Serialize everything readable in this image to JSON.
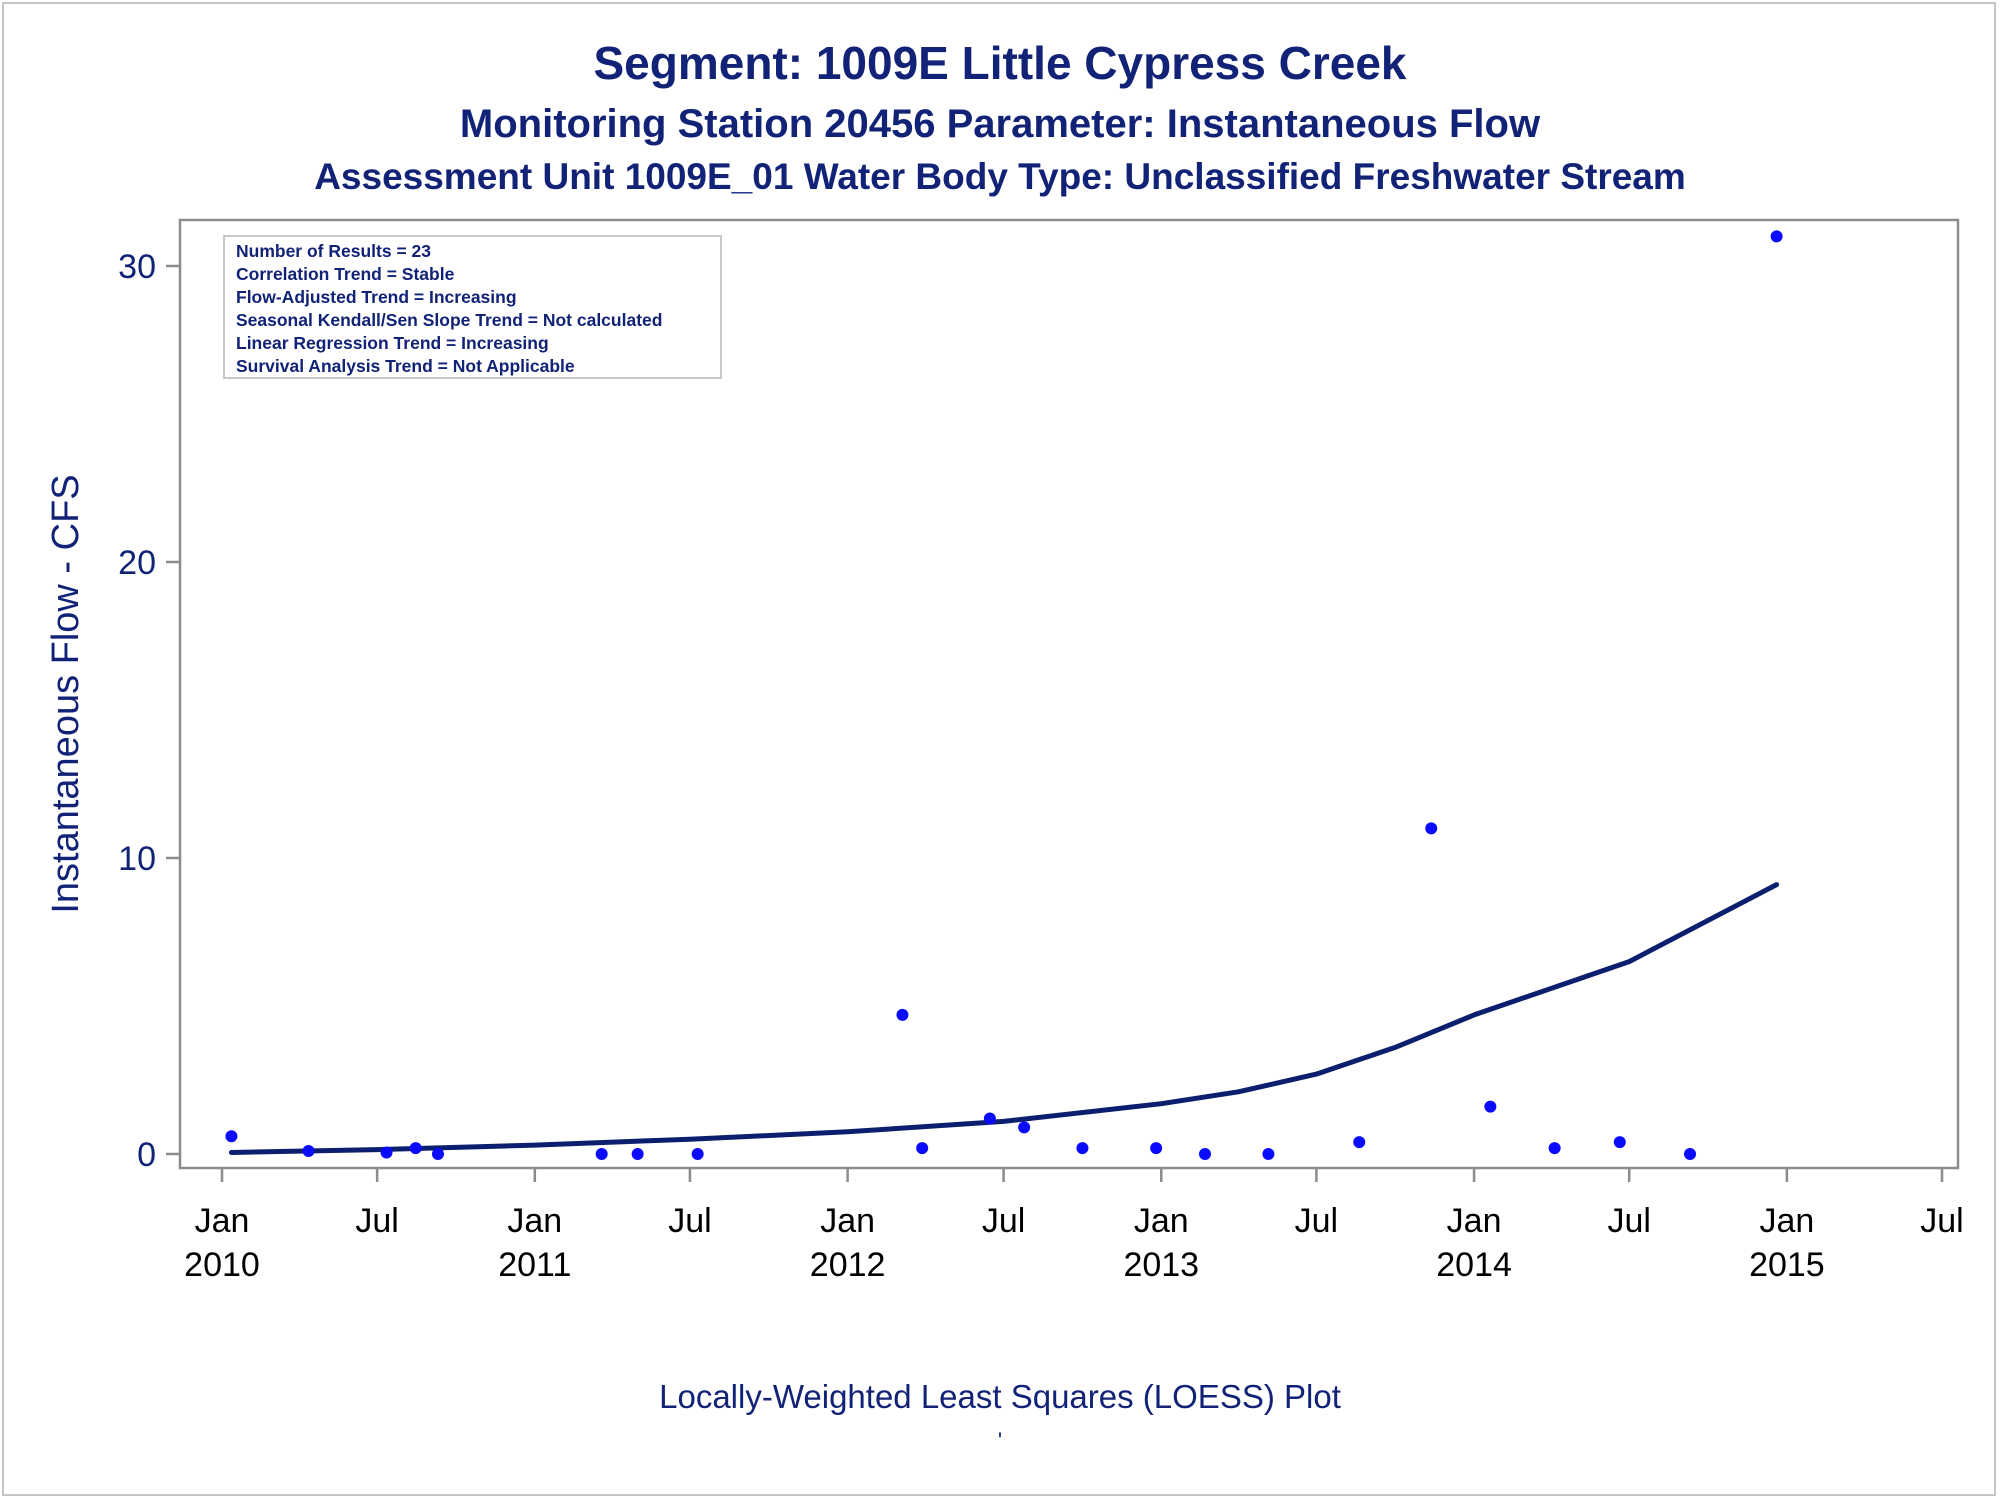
{
  "chart_data": {
    "type": "scatter",
    "title": "Segment: 1009E  Little Cypress Creek",
    "subtitle1": "Monitoring Station 20456 Parameter: Instantaneous Flow",
    "subtitle2": "Assessment Unit 1009E_01   Water Body Type: Unclassified Freshwater Stream",
    "ylabel": "Instantaneous Flow - CFS",
    "xlabel": "",
    "footnote": "Locally-Weighted Least Squares (LOESS) Plot",
    "footnote_mark": "'",
    "x_range": [
      "2010-01-01",
      "2015-07-01"
    ],
    "ylim": [
      0,
      31
    ],
    "y_ticks": [
      0,
      10,
      20,
      30
    ],
    "x_ticks": [
      {
        "date": "2010-01-01",
        "label1": "Jan",
        "label2": "2010"
      },
      {
        "date": "2010-07-01",
        "label1": "Jul",
        "label2": ""
      },
      {
        "date": "2011-01-01",
        "label1": "Jan",
        "label2": "2011"
      },
      {
        "date": "2011-07-01",
        "label1": "Jul",
        "label2": ""
      },
      {
        "date": "2012-01-01",
        "label1": "Jan",
        "label2": "2012"
      },
      {
        "date": "2012-07-01",
        "label1": "Jul",
        "label2": ""
      },
      {
        "date": "2013-01-01",
        "label1": "Jan",
        "label2": "2013"
      },
      {
        "date": "2013-07-01",
        "label1": "Jul",
        "label2": ""
      },
      {
        "date": "2014-01-01",
        "label1": "Jan",
        "label2": "2014"
      },
      {
        "date": "2014-07-01",
        "label1": "Jul",
        "label2": ""
      },
      {
        "date": "2015-01-01",
        "label1": "Jan",
        "label2": "2015"
      },
      {
        "date": "2015-07-01",
        "label1": "Jul",
        "label2": ""
      }
    ],
    "legend": {
      "placement": "top-left",
      "lines": [
        "Number of Results = 23",
        "Correlation Trend = Stable",
        "Flow-Adjusted Trend = Increasing",
        "Seasonal Kendall/Sen Slope Trend = Not calculated",
        "Linear Regression Trend = Increasing",
        "Survival Analysis Trend = Not Applicable"
      ]
    },
    "points": [
      {
        "x": "2010-01-12",
        "y": 0.6
      },
      {
        "x": "2010-04-12",
        "y": 0.1
      },
      {
        "x": "2010-07-12",
        "y": 0.05
      },
      {
        "x": "2010-08-15",
        "y": 0.2
      },
      {
        "x": "2010-09-10",
        "y": 0.0
      },
      {
        "x": "2011-03-20",
        "y": 0.0
      },
      {
        "x": "2011-05-01",
        "y": 0.0
      },
      {
        "x": "2011-07-10",
        "y": 0.0
      },
      {
        "x": "2012-03-05",
        "y": 4.7
      },
      {
        "x": "2012-03-28",
        "y": 0.2
      },
      {
        "x": "2012-06-15",
        "y": 1.2
      },
      {
        "x": "2012-07-25",
        "y": 0.9
      },
      {
        "x": "2012-10-01",
        "y": 0.2
      },
      {
        "x": "2012-12-26",
        "y": 0.2
      },
      {
        "x": "2013-02-21",
        "y": 0.0
      },
      {
        "x": "2013-05-06",
        "y": 0.0
      },
      {
        "x": "2013-08-20",
        "y": 0.4
      },
      {
        "x": "2013-11-12",
        "y": 11.0
      },
      {
        "x": "2014-01-20",
        "y": 1.6
      },
      {
        "x": "2014-04-05",
        "y": 0.2
      },
      {
        "x": "2014-06-20",
        "y": 0.4
      },
      {
        "x": "2014-09-10",
        "y": 0.0
      },
      {
        "x": "2014-12-20",
        "y": 31.0
      }
    ],
    "loess_line": [
      {
        "x": "2010-01-12",
        "y": 0.05
      },
      {
        "x": "2010-07-01",
        "y": 0.15
      },
      {
        "x": "2011-01-01",
        "y": 0.3
      },
      {
        "x": "2011-07-01",
        "y": 0.5
      },
      {
        "x": "2012-01-01",
        "y": 0.75
      },
      {
        "x": "2012-07-01",
        "y": 1.1
      },
      {
        "x": "2013-01-01",
        "y": 1.7
      },
      {
        "x": "2013-04-01",
        "y": 2.1
      },
      {
        "x": "2013-07-01",
        "y": 2.7
      },
      {
        "x": "2013-10-01",
        "y": 3.6
      },
      {
        "x": "2014-01-01",
        "y": 4.7
      },
      {
        "x": "2014-07-01",
        "y": 6.5
      },
      {
        "x": "2014-12-20",
        "y": 9.1
      }
    ],
    "grid": false,
    "colors": {
      "text": "#112277",
      "points": "#0a0aff",
      "line": "#0b1f6e",
      "axis": "#8c8c8c"
    }
  }
}
